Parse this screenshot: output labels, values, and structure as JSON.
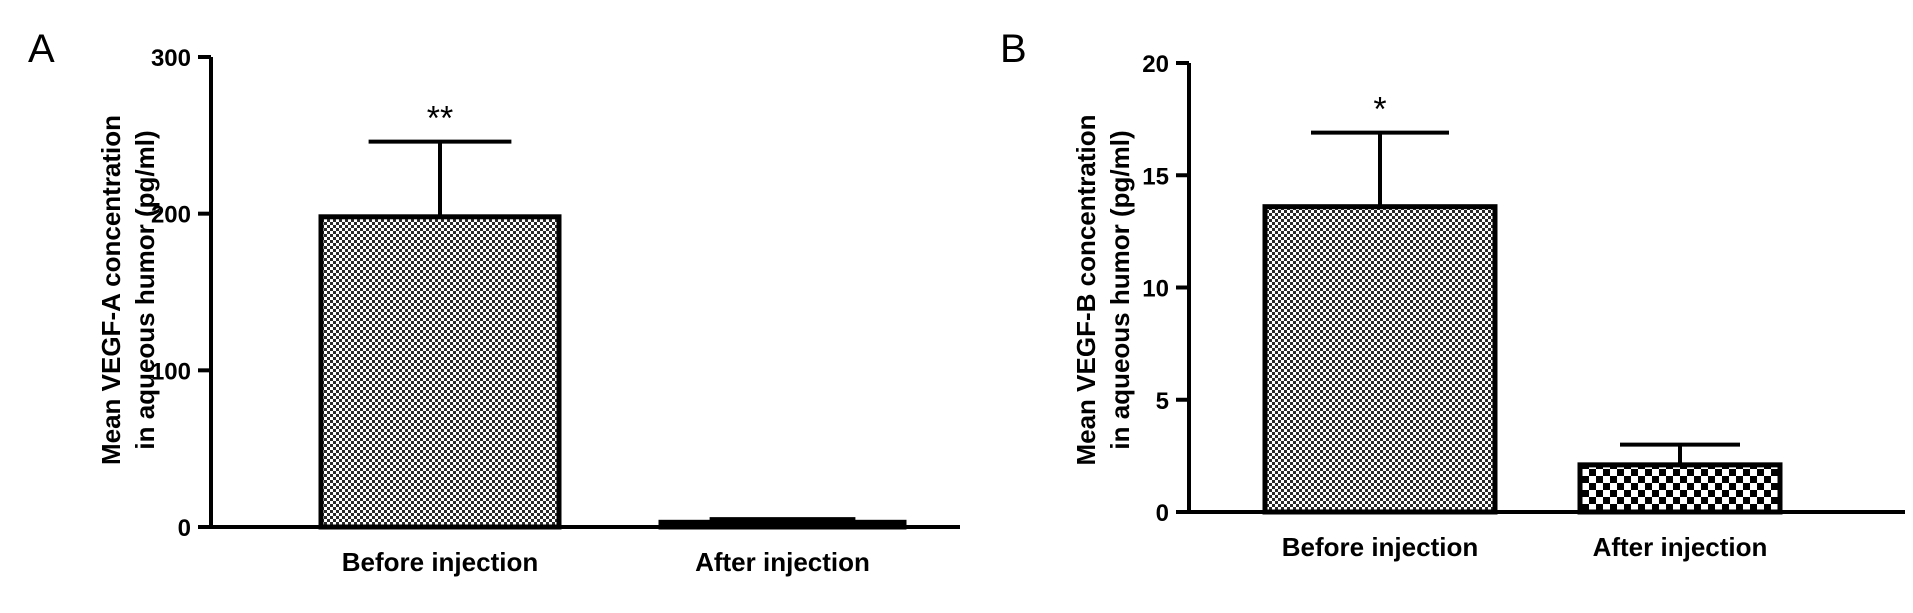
{
  "panels": [
    {
      "letter": "A",
      "ylabel_line1": "Mean VEGF-A concentration",
      "ylabel_line2": "in aqueous humor (pg/ml)"
    },
    {
      "letter": "B",
      "ylabel_line1": "Mean VEGF-B concentration",
      "ylabel_line2": "in aqueous humor (pg/ml)"
    }
  ],
  "chart_data": [
    {
      "type": "bar",
      "panel": "A",
      "categories": [
        "Before injection",
        "After injection"
      ],
      "values": [
        198,
        3
      ],
      "error_upper": [
        246,
        5
      ],
      "significance": [
        "**",
        ""
      ],
      "ylabel": "Mean VEGF-A concentration in aqueous humor (pg/ml)",
      "ylim": [
        0,
        300
      ],
      "yticks": [
        0,
        100,
        200,
        300
      ],
      "bar_fills": [
        "fine-checker",
        "fine-checker"
      ]
    },
    {
      "type": "bar",
      "panel": "B",
      "categories": [
        "Before injection",
        "After injection"
      ],
      "values": [
        13.6,
        2.1
      ],
      "error_upper": [
        16.9,
        3.0
      ],
      "significance": [
        "*",
        ""
      ],
      "ylabel": "Mean VEGF-B concentration in aqueous humor (pg/ml)",
      "ylim": [
        0,
        20
      ],
      "yticks": [
        0,
        5,
        10,
        15,
        20
      ],
      "bar_fills": [
        "fine-checker",
        "coarse-checker"
      ]
    }
  ]
}
